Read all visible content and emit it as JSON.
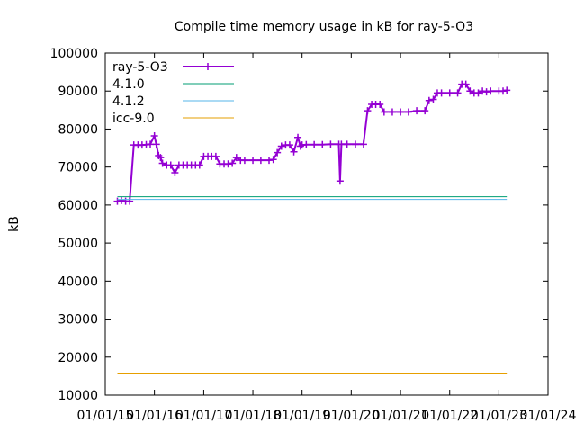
{
  "chart_data": {
    "type": "line",
    "title": "Compile time memory usage in kB for ray-5-O3",
    "xlabel": "",
    "ylabel": "kB",
    "ylim": [
      10000,
      100000
    ],
    "yticks": [
      "10000",
      "20000",
      "30000",
      "40000",
      "50000",
      "60000",
      "70000",
      "80000",
      "90000",
      "100000"
    ],
    "xlim": [
      "2015-01-01",
      "2024-01-01"
    ],
    "xticks": [
      {
        "label": "01/01/15",
        "date": "2015-01-01"
      },
      {
        "label": "01/01/16",
        "date": "2016-01-01"
      },
      {
        "label": "01/01/17",
        "date": "2017-01-01"
      },
      {
        "label": "01/01/18",
        "date": "2018-01-01"
      },
      {
        "label": "01/01/19",
        "date": "2019-01-01"
      },
      {
        "label": "01/01/20",
        "date": "2020-01-01"
      },
      {
        "label": "01/01/21",
        "date": "2021-01-01"
      },
      {
        "label": "01/01/22",
        "date": "2022-01-01"
      },
      {
        "label": "01/01/23",
        "date": "2023-01-01"
      },
      {
        "label": "01/01/24",
        "date": "2024-01-01"
      }
    ],
    "grid": false,
    "legend_position": "top-left",
    "series": [
      {
        "name": "ray-5-O3",
        "color": "#9400d3",
        "style": "linespoints",
        "points": [
          [
            "2015-04-01",
            61000
          ],
          [
            "2015-05-01",
            61200
          ],
          [
            "2015-06-01",
            61000
          ],
          [
            "2015-07-01",
            61000
          ],
          [
            "2015-08-01",
            75800
          ],
          [
            "2015-09-01",
            75800
          ],
          [
            "2015-10-01",
            75800
          ],
          [
            "2015-11-01",
            75900
          ],
          [
            "2015-12-01",
            76000
          ],
          [
            "2016-01-01",
            78200
          ],
          [
            "2016-01-15",
            76000
          ],
          [
            "2016-02-01",
            73000
          ],
          [
            "2016-02-15",
            72500
          ],
          [
            "2016-03-01",
            71000
          ],
          [
            "2016-04-01",
            70500
          ],
          [
            "2016-05-01",
            70500
          ],
          [
            "2016-06-01",
            68500
          ],
          [
            "2016-07-01",
            70500
          ],
          [
            "2016-08-01",
            70500
          ],
          [
            "2016-09-01",
            70500
          ],
          [
            "2016-10-01",
            70500
          ],
          [
            "2016-11-01",
            70500
          ],
          [
            "2016-12-01",
            70500
          ],
          [
            "2017-01-01",
            72800
          ],
          [
            "2017-02-01",
            72800
          ],
          [
            "2017-03-01",
            72800
          ],
          [
            "2017-04-01",
            72800
          ],
          [
            "2017-05-01",
            70800
          ],
          [
            "2017-06-01",
            70800
          ],
          [
            "2017-07-01",
            70800
          ],
          [
            "2017-08-01",
            71000
          ],
          [
            "2017-09-01",
            72500
          ],
          [
            "2017-10-01",
            71800
          ],
          [
            "2017-11-01",
            71800
          ],
          [
            "2018-01-01",
            71800
          ],
          [
            "2018-03-01",
            71800
          ],
          [
            "2018-05-01",
            71800
          ],
          [
            "2018-06-01",
            72000
          ],
          [
            "2018-07-01",
            73800
          ],
          [
            "2018-08-01",
            75500
          ],
          [
            "2018-09-01",
            75800
          ],
          [
            "2018-10-01",
            75800
          ],
          [
            "2018-11-01",
            74000
          ],
          [
            "2018-12-01",
            77800
          ],
          [
            "2018-12-20",
            75500
          ],
          [
            "2019-01-01",
            75800
          ],
          [
            "2019-02-01",
            75900
          ],
          [
            "2019-04-01",
            75900
          ],
          [
            "2019-06-01",
            75900
          ],
          [
            "2019-08-01",
            76000
          ],
          [
            "2019-10-01",
            76000
          ],
          [
            "2019-10-10",
            66300
          ],
          [
            "2019-10-20",
            76000
          ],
          [
            "2019-12-01",
            76000
          ],
          [
            "2020-02-01",
            76000
          ],
          [
            "2020-04-01",
            76000
          ],
          [
            "2020-05-01",
            84800
          ],
          [
            "2020-06-01",
            86500
          ],
          [
            "2020-07-01",
            86500
          ],
          [
            "2020-08-01",
            86500
          ],
          [
            "2020-09-01",
            84500
          ],
          [
            "2020-11-01",
            84500
          ],
          [
            "2021-01-01",
            84500
          ],
          [
            "2021-03-01",
            84500
          ],
          [
            "2021-05-01",
            84800
          ],
          [
            "2021-07-01",
            84800
          ],
          [
            "2021-08-01",
            87500
          ],
          [
            "2021-09-01",
            87800
          ],
          [
            "2021-10-01",
            89500
          ],
          [
            "2021-11-01",
            89500
          ],
          [
            "2022-01-01",
            89500
          ],
          [
            "2022-03-01",
            89500
          ],
          [
            "2022-04-01",
            91800
          ],
          [
            "2022-05-01",
            91800
          ],
          [
            "2022-06-01",
            90000
          ],
          [
            "2022-07-01",
            89500
          ],
          [
            "2022-08-01",
            89500
          ],
          [
            "2022-09-01",
            90000
          ],
          [
            "2022-10-01",
            89800
          ],
          [
            "2022-11-01",
            90000
          ],
          [
            "2023-01-01",
            90000
          ],
          [
            "2023-02-01",
            90000
          ],
          [
            "2023-03-01",
            90200
          ]
        ]
      },
      {
        "name": "4.1.0",
        "color": "#009e73",
        "style": "lines",
        "points": [
          [
            "2015-04-01",
            62200
          ],
          [
            "2023-03-01",
            62200
          ]
        ]
      },
      {
        "name": "4.1.2",
        "color": "#56b4e9",
        "style": "lines",
        "points": [
          [
            "2015-04-01",
            61500
          ],
          [
            "2023-03-01",
            61500
          ]
        ]
      },
      {
        "name": "icc-9.0",
        "color": "#e69f00",
        "style": "lines",
        "points": [
          [
            "2015-04-01",
            15800
          ],
          [
            "2023-03-01",
            15800
          ]
        ]
      }
    ]
  }
}
